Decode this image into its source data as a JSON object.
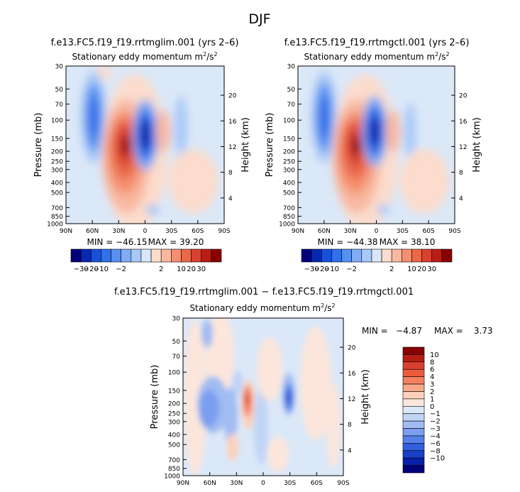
{
  "page_title": "DJF",
  "colors": {
    "plot_background": "#dbe8f8",
    "cbar1": [
      "#00007a",
      "#0828b0",
      "#1850d8",
      "#3070e8",
      "#5890f0",
      "#80acf4",
      "#a8c8f8",
      "#d8e6f8",
      "#fcdccc",
      "#f8b8a0",
      "#f49070",
      "#e86848",
      "#d84030",
      "#b81e14",
      "#8a0000"
    ],
    "cbar2": [
      "#8a0000",
      "#b41e14",
      "#d84030",
      "#ec5c3c",
      "#f48060",
      "#f8a888",
      "#fcd0bc",
      "#fce6dc",
      "#dbe8f8",
      "#c0d4f6",
      "#a0bcf2",
      "#7c9ef0",
      "#5680ea",
      "#3060e0",
      "#1840c8",
      "#0820a8",
      "#00007a"
    ]
  },
  "chart_data": [
    {
      "type": "contour",
      "title": "f.e13.FC5.f19_f19.rrtmglim.001 (yrs 2–6)",
      "subtitle_text": "Stationary eddy momentum",
      "units_base": "m",
      "units_sup1": "2",
      "units_mid": "/s",
      "units_sup2": "2",
      "xlabel": "",
      "ylabel": "Pressure (mb)",
      "y2label": "Height (km)",
      "xticks": [
        "90N",
        "60N",
        "30N",
        "0",
        "30S",
        "60S",
        "90S"
      ],
      "yticks": [
        30,
        50,
        70,
        100,
        150,
        200,
        250,
        300,
        400,
        500,
        700,
        850,
        1000
      ],
      "y2ticks": [
        4,
        8,
        12,
        16,
        20
      ],
      "min_label": "MIN = −46.15",
      "max_label": "MAX = 39.20",
      "min": -46.15,
      "max": 39.2,
      "colorbar_ticks": [
        "−30",
        "−20",
        "−10",
        "−2",
        "2",
        "10",
        "20",
        "30"
      ]
    },
    {
      "type": "contour",
      "title": "f.e13.FC5.f19_f19.rrtmgctl.001 (yrs 2–6)",
      "subtitle_text": "Stationary eddy momentum",
      "units_base": "m",
      "units_sup1": "2",
      "units_mid": "/s",
      "units_sup2": "2",
      "xlabel": "",
      "ylabel": "Pressure (mb)",
      "y2label": "Height (km)",
      "xticks": [
        "90N",
        "60N",
        "30N",
        "0",
        "30S",
        "60S",
        "90S"
      ],
      "yticks": [
        30,
        50,
        70,
        100,
        150,
        200,
        250,
        300,
        400,
        500,
        700,
        850,
        1000
      ],
      "y2ticks": [
        4,
        8,
        12,
        16,
        20
      ],
      "min_label": "MIN = −44.38",
      "max_label": "MAX = 38.10",
      "min": -44.38,
      "max": 38.1,
      "colorbar_ticks": [
        "−30",
        "−20",
        "−10",
        "−2",
        "2",
        "10",
        "20",
        "30"
      ]
    },
    {
      "type": "contour",
      "title": "f.e13.FC5.f19_f19.rrtmglim.001 − f.e13.FC5.f19_f19.rrtmgctl.001",
      "subtitle_text": "Stationary eddy momentum",
      "units_base": "m",
      "units_sup1": "2",
      "units_mid": "/s",
      "units_sup2": "2",
      "xlabel": "",
      "ylabel": "Pressure (mb)",
      "y2label": "Height (km)",
      "xticks": [
        "90N",
        "60N",
        "30N",
        "0",
        "30S",
        "60S",
        "90S"
      ],
      "yticks": [
        30,
        50,
        70,
        100,
        150,
        200,
        250,
        300,
        400,
        500,
        700,
        850,
        1000
      ],
      "y2ticks": [
        4,
        8,
        12,
        16,
        20
      ],
      "min_label": "MIN =   −4.87",
      "max_label": "MAX =    3.73",
      "min": -4.87,
      "max": 3.73,
      "colorbar_ticks": [
        "10",
        "8",
        "6",
        "4",
        "3",
        "2",
        "1",
        "0",
        "−1",
        "−2",
        "−3",
        "−4",
        "−6",
        "−8",
        "−10"
      ]
    }
  ]
}
